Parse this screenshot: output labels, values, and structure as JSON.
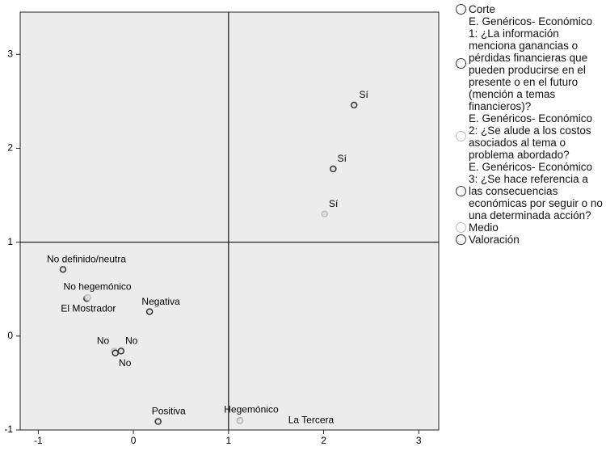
{
  "chart_data": {
    "type": "scatter",
    "xlim": [
      -1.19,
      3.21
    ],
    "ylim": [
      -1.0,
      3.45
    ],
    "xticks": [
      -1,
      0,
      1,
      2,
      3
    ],
    "yticks": [
      -1,
      0,
      1,
      2,
      3
    ],
    "reference_lines": {
      "x": 1,
      "y": 1
    },
    "series": [
      {
        "name": "Corte",
        "color": "#333333",
        "labels": [
          "El Mostrador",
          "La Tercera"
        ],
        "x": [
          -0.49,
          1.12
        ],
        "y": [
          0.4,
          -0.9
        ]
      },
      {
        "name": "E. Genéricos- Económico 1: ¿La información menciona ganancias o pérdidas financieras que pueden producirse en el presente o en el futuro (mención a temas financieros)?",
        "color": "#333333",
        "labels": [
          "Sí",
          "No"
        ],
        "x": [
          2.32,
          -0.13
        ],
        "y": [
          2.46,
          -0.16
        ]
      },
      {
        "name": "E. Genéricos- Económico 2: ¿Se alude a los costos asociados al tema o problema abordado?",
        "color": "#bbbbbb",
        "labels": [
          "Sí",
          "No"
        ],
        "x": [
          2.01,
          -0.2
        ],
        "y": [
          1.3,
          -0.16
        ]
      },
      {
        "name": "E. Genéricos- Económico 3: ¿Se hace referencia a las consecuencias económicas por seguir o no una determinada acción?",
        "color": "#333333",
        "labels": [
          "Sí",
          "No"
        ],
        "x": [
          2.1,
          -0.19
        ],
        "y": [
          1.78,
          -0.18
        ]
      },
      {
        "name": "Medio",
        "color": "#bbbbbb",
        "labels": [
          "No hegemónico",
          "Hegemónico"
        ],
        "x": [
          -0.48,
          1.12
        ],
        "y": [
          0.41,
          -0.9
        ]
      },
      {
        "name": "Valoración",
        "color": "#333333",
        "labels": [
          "No definido/neutra",
          "Negativa",
          "Positiva"
        ],
        "x": [
          -0.74,
          0.17,
          0.26
        ],
        "y": [
          0.71,
          0.26,
          -0.91
        ]
      }
    ]
  }
}
